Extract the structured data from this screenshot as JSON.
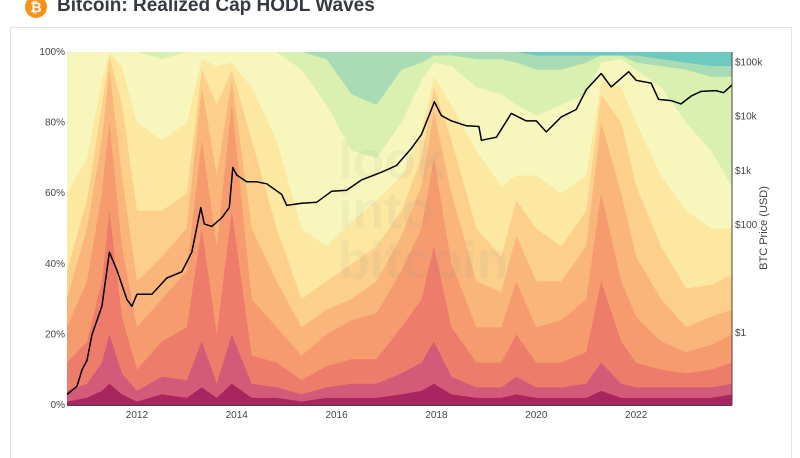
{
  "header": {
    "title": "Bitcoin: Realized Cap HODL Waves",
    "icon": "bitcoin-icon",
    "icon_glyph": "₿"
  },
  "watermark": [
    "look",
    "into",
    "bitcoin"
  ],
  "chart_data": {
    "type": "area",
    "title": "Bitcoin: Realized Cap HODL Waves",
    "stacked": true,
    "x": [
      2010.6,
      2011.0,
      2011.3,
      2011.45,
      2011.7,
      2012.0,
      2012.5,
      2013.0,
      2013.3,
      2013.6,
      2013.9,
      2014.3,
      2014.8,
      2015.3,
      2015.8,
      2016.3,
      2016.8,
      2017.3,
      2017.7,
      2017.95,
      2018.3,
      2018.8,
      2019.3,
      2019.6,
      2020.0,
      2020.5,
      2021.0,
      2021.3,
      2021.7,
      2022.0,
      2022.5,
      2023.0,
      2023.5,
      2023.92
    ],
    "ylim": [
      0,
      100
    ],
    "yticks": [
      "0%",
      "20%",
      "40%",
      "60%",
      "80%",
      "100%"
    ],
    "ytick_values": [
      0,
      20,
      40,
      60,
      80,
      100
    ],
    "xticks": [
      "2012",
      "2014",
      "2016",
      "2018",
      "2020",
      "2022"
    ],
    "xtick_values": [
      2012,
      2014,
      2016,
      2018,
      2020,
      2022
    ],
    "xlim": [
      2010.6,
      2023.92
    ],
    "cumulative_series": [
      {
        "color": "#a8255f",
        "values": [
          1,
          2,
          4,
          6,
          3,
          1,
          3,
          2,
          5,
          2,
          6,
          2,
          2,
          1,
          2,
          2,
          2,
          3,
          4,
          6,
          3,
          2,
          2,
          3,
          2,
          2,
          2,
          4,
          2,
          2,
          2,
          2,
          2,
          3
        ]
      },
      {
        "color": "#d35a78",
        "values": [
          4,
          6,
          12,
          20,
          9,
          4,
          8,
          7,
          18,
          6,
          20,
          6,
          5,
          3,
          5,
          6,
          6,
          9,
          12,
          18,
          8,
          5,
          5,
          8,
          5,
          5,
          6,
          12,
          6,
          5,
          5,
          5,
          5,
          6
        ]
      },
      {
        "color": "#ee7c6b",
        "values": [
          12,
          18,
          35,
          55,
          25,
          10,
          18,
          22,
          50,
          20,
          55,
          14,
          12,
          7,
          11,
          13,
          13,
          22,
          30,
          45,
          22,
          12,
          12,
          20,
          12,
          12,
          15,
          35,
          18,
          12,
          10,
          9,
          10,
          12
        ]
      },
      {
        "color": "#f59b6e",
        "values": [
          22,
          35,
          60,
          80,
          45,
          22,
          30,
          38,
          75,
          45,
          85,
          30,
          22,
          14,
          20,
          24,
          26,
          38,
          50,
          70,
          40,
          22,
          22,
          35,
          22,
          24,
          30,
          60,
          35,
          25,
          18,
          15,
          17,
          20
        ]
      },
      {
        "color": "#f9b57a",
        "values": [
          30,
          50,
          75,
          95,
          65,
          35,
          42,
          50,
          90,
          65,
          92,
          50,
          35,
          22,
          27,
          30,
          35,
          48,
          62,
          83,
          60,
          35,
          32,
          48,
          35,
          35,
          45,
          80,
          60,
          42,
          30,
          22,
          25,
          27
        ]
      },
      {
        "color": "#fccf8b",
        "values": [
          38,
          58,
          85,
          99,
          85,
          55,
          55,
          60,
          95,
          85,
          95,
          75,
          50,
          30,
          35,
          40,
          45,
          55,
          70,
          90,
          75,
          50,
          42,
          58,
          50,
          45,
          55,
          88,
          80,
          62,
          45,
          33,
          34,
          37
        ]
      },
      {
        "color": "#fde8a2",
        "values": [
          60,
          70,
          92,
          100,
          96,
          80,
          75,
          80,
          98,
          96,
          97,
          90,
          75,
          50,
          45,
          52,
          58,
          65,
          78,
          93,
          85,
          72,
          62,
          65,
          65,
          60,
          65,
          92,
          90,
          80,
          65,
          55,
          50,
          50
        ]
      },
      {
        "color": "#f7f7bd",
        "values": [
          100,
          100,
          100,
          100,
          100,
          100,
          98,
          100,
          100,
          100,
          100,
          100,
          100,
          95,
          85,
          72,
          70,
          80,
          92,
          97,
          96,
          90,
          88,
          85,
          82,
          85,
          88,
          97,
          98,
          95,
          90,
          80,
          72,
          62
        ]
      },
      {
        "color": "#d9f0b1",
        "values": [
          100,
          100,
          100,
          100,
          100,
          100,
          100,
          100,
          100,
          100,
          100,
          100,
          100,
          100,
          98,
          88,
          85,
          95,
          97,
          99,
          99,
          98,
          98,
          97,
          95,
          95,
          97,
          99,
          99,
          97,
          96,
          95,
          93,
          93
        ]
      },
      {
        "color": "#a9dcb4",
        "values": [
          100,
          100,
          100,
          100,
          100,
          100,
          100,
          100,
          100,
          100,
          100,
          100,
          100,
          100,
          100,
          100,
          100,
          100,
          100,
          100,
          100,
          100,
          100,
          100,
          99,
          99,
          99,
          99,
          99,
          99,
          98,
          97,
          96,
          96
        ]
      },
      {
        "color": "#6ec9c0",
        "values": [
          100,
          100,
          100,
          100,
          100,
          100,
          100,
          100,
          100,
          100,
          100,
          100,
          100,
          100,
          100,
          100,
          100,
          100,
          100,
          100,
          100,
          100,
          100,
          100,
          100,
          100,
          100,
          100,
          100,
          100,
          100,
          100,
          100,
          100
        ]
      }
    ],
    "price_series": {
      "name": "BTC Price (USD)",
      "color": "#000000",
      "x": [
        2010.6,
        2010.8,
        2010.9,
        2011.0,
        2011.1,
        2011.3,
        2011.45,
        2011.6,
        2011.8,
        2011.9,
        2012.0,
        2012.3,
        2012.6,
        2012.9,
        2013.1,
        2013.28,
        2013.35,
        2013.5,
        2013.7,
        2013.85,
        2013.92,
        2014.0,
        2014.2,
        2014.4,
        2014.6,
        2014.9,
        2015.0,
        2015.3,
        2015.6,
        2015.9,
        2016.2,
        2016.5,
        2016.9,
        2017.2,
        2017.5,
        2017.7,
        2017.96,
        2018.1,
        2018.3,
        2018.6,
        2018.85,
        2018.9,
        2019.2,
        2019.5,
        2019.8,
        2020.0,
        2020.2,
        2020.5,
        2020.8,
        2021.0,
        2021.3,
        2021.5,
        2021.85,
        2022.0,
        2022.3,
        2022.45,
        2022.7,
        2022.9,
        2023.1,
        2023.3,
        2023.6,
        2023.75,
        2023.92
      ],
      "y": [
        0.07,
        0.1,
        0.2,
        0.3,
        0.9,
        3,
        30,
        14,
        4,
        3,
        5,
        5,
        10,
        13,
        30,
        200,
        100,
        90,
        130,
        200,
        1100,
        800,
        600,
        600,
        550,
        350,
        220,
        240,
        250,
        400,
        420,
        650,
        900,
        1200,
        2500,
        4500,
        18000,
        10000,
        8000,
        6500,
        6300,
        3500,
        4000,
        11000,
        8000,
        8000,
        5000,
        9500,
        13000,
        30000,
        60000,
        34000,
        65000,
        45000,
        40000,
        20000,
        19000,
        16500,
        23000,
        28000,
        29000,
        26500,
        37000
      ]
    },
    "y2label": "BTC Price (USD)",
    "y2scale": "log",
    "y2lim": [
      0.045,
      150000
    ],
    "y2ticks": [
      "$1",
      "$100",
      "$1k",
      "$10k",
      "$100k"
    ],
    "y2tick_values": [
      1,
      100,
      1000,
      10000,
      100000
    ],
    "grid": false
  }
}
